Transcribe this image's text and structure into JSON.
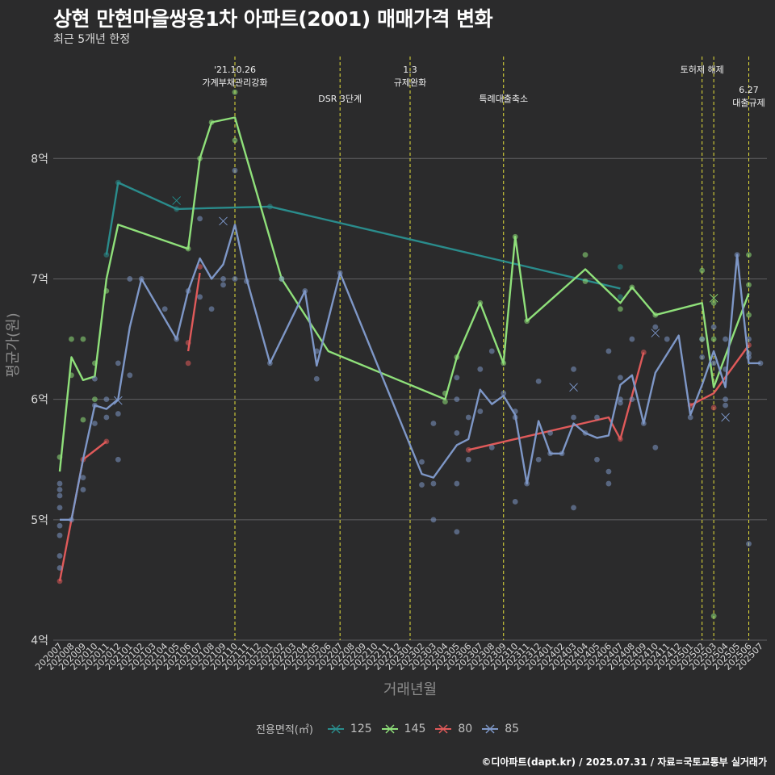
{
  "title": "상현 만현마을쌍용1차 아파트(2001) 매매가격 변화",
  "subtitle": "최근 5개년 한정",
  "caption": "©디아파트(dapt.kr) / 2025.07.31 / 자료=국토교통부 실거래가",
  "legend": {
    "title": "전용면적(㎡)",
    "items": [
      {
        "label": "125",
        "color": "#2a8c8c"
      },
      {
        "label": "145",
        "color": "#8fe07a"
      },
      {
        "label": "80",
        "color": "#e05a5a"
      },
      {
        "label": "85",
        "color": "#7e97c7"
      }
    ]
  },
  "chart_data": {
    "type": "line",
    "xlabel": "거래년월",
    "ylabel": "평균가(원)",
    "ylim": [
      4,
      8.9
    ],
    "yticks": [
      {
        "value": 4,
        "label": "4억"
      },
      {
        "value": 5,
        "label": "5억"
      },
      {
        "value": 6,
        "label": "6억"
      },
      {
        "value": 7,
        "label": "7억"
      },
      {
        "value": 8,
        "label": "8억"
      }
    ],
    "categories": [
      "202007",
      "202008",
      "202009",
      "202010",
      "202011",
      "202012",
      "202101",
      "202102",
      "202103",
      "202104",
      "202105",
      "202106",
      "202107",
      "202108",
      "202109",
      "202110",
      "202111",
      "202112",
      "202201",
      "202202",
      "202203",
      "202204",
      "202205",
      "202206",
      "202207",
      "202208",
      "202209",
      "202210",
      "202211",
      "202212",
      "202301",
      "202302",
      "202303",
      "202304",
      "202305",
      "202306",
      "202307",
      "202308",
      "202309",
      "202310",
      "202311",
      "202312",
      "202401",
      "202402",
      "202403",
      "202404",
      "202405",
      "202406",
      "202407",
      "202408",
      "202409",
      "202410",
      "202411",
      "202412",
      "202501",
      "202502",
      "202503",
      "202504",
      "202505",
      "202506",
      "202507"
    ],
    "events": [
      {
        "x": "202110",
        "label": [
          "'21.10.26",
          "가계부채관리강화"
        ],
        "level": 0
      },
      {
        "x": "202207",
        "label": [
          "DSR 3단계"
        ],
        "level": 1
      },
      {
        "x": "202301",
        "label": [
          "1.3",
          "규제완화"
        ],
        "level": 0
      },
      {
        "x": "202309",
        "label": [
          "특례대출축소"
        ],
        "level": 1
      },
      {
        "x": "202502",
        "label": [
          "토허제 해제"
        ],
        "level": 0
      },
      {
        "x": "202503",
        "label": [],
        "level": 0
      },
      {
        "x": "202506",
        "label": [
          "6.27",
          "대출규제"
        ],
        "level": 2
      }
    ],
    "series": [
      {
        "name": "125",
        "color": "#2a8c8c",
        "line": [
          [
            "202011",
            7.2
          ],
          [
            "202012",
            7.8
          ],
          [
            "202105",
            7.58
          ],
          [
            "202201",
            7.6
          ],
          [
            "202407",
            6.92
          ]
        ],
        "points": [
          [
            "202011",
            7.2
          ],
          [
            "202012",
            7.8
          ],
          [
            "202105",
            7.58
          ],
          [
            "202201",
            7.6
          ],
          [
            "202407",
            7.1
          ],
          [
            "202407",
            6.85
          ]
        ],
        "crosses": [
          [
            "202105",
            7.65
          ]
        ]
      },
      {
        "name": "145",
        "color": "#8fe07a",
        "line": [
          [
            "202007",
            5.4
          ],
          [
            "202008",
            6.35
          ],
          [
            "202009",
            6.16
          ],
          [
            "202010",
            6.19
          ],
          [
            "202011",
            7.0
          ],
          [
            "202012",
            7.45
          ],
          [
            "202106",
            7.25
          ],
          [
            "202107",
            8.0
          ],
          [
            "202108",
            8.3
          ],
          [
            "202110",
            8.34
          ],
          [
            "202202",
            7.0
          ],
          [
            "202206",
            6.4
          ],
          [
            "202304",
            6.0
          ],
          [
            "202305",
            6.35
          ],
          [
            "202307",
            6.8
          ],
          [
            "202309",
            6.3
          ],
          [
            "202310",
            7.35
          ],
          [
            "202311",
            6.65
          ],
          [
            "202404",
            7.08
          ],
          [
            "202407",
            6.8
          ],
          [
            "202408",
            6.93
          ],
          [
            "202410",
            6.7
          ],
          [
            "202502",
            6.8
          ],
          [
            "202503",
            6.1
          ],
          [
            "202506",
            6.88
          ]
        ],
        "points": [
          [
            "202007",
            5.52
          ],
          [
            "202008",
            6.2
          ],
          [
            "202008",
            6.5
          ],
          [
            "202009",
            5.83
          ],
          [
            "202009",
            6.5
          ],
          [
            "202010",
            6.3
          ],
          [
            "202010",
            6.0
          ],
          [
            "202011",
            6.9
          ],
          [
            "202106",
            7.25
          ],
          [
            "202107",
            8.0
          ],
          [
            "202108",
            8.3
          ],
          [
            "202110",
            8.55
          ],
          [
            "202110",
            8.15
          ],
          [
            "202202",
            7.0
          ],
          [
            "202304",
            6.05
          ],
          [
            "202304",
            5.98
          ],
          [
            "202305",
            6.35
          ],
          [
            "202307",
            6.8
          ],
          [
            "202309",
            6.3
          ],
          [
            "202310",
            7.35
          ],
          [
            "202311",
            6.65
          ],
          [
            "202404",
            7.2
          ],
          [
            "202404",
            6.98
          ],
          [
            "202407",
            6.75
          ],
          [
            "202408",
            6.93
          ],
          [
            "202410",
            6.7
          ],
          [
            "202502",
            7.07
          ],
          [
            "202502",
            6.5
          ],
          [
            "202503",
            6.8
          ],
          [
            "202503",
            6.5
          ],
          [
            "202503",
            4.2
          ],
          [
            "202506",
            7.2
          ],
          [
            "202506",
            6.95
          ],
          [
            "202506",
            6.7
          ]
        ],
        "crosses": [
          [
            "202503",
            6.84
          ]
        ]
      },
      {
        "name": "80",
        "color": "#e05a5a",
        "line": [
          [
            "202007",
            4.49
          ],
          [
            "202008",
            5.0
          ],
          [
            "202009",
            5.5
          ],
          [
            "202011",
            5.65
          ]
        ],
        "line2": [
          [
            "202106",
            6.4
          ],
          [
            "202107",
            7.05
          ]
        ],
        "line3": [
          [
            "202306",
            5.58
          ],
          [
            "202406",
            5.85
          ],
          [
            "202407",
            5.67
          ],
          [
            "202409",
            6.39
          ]
        ],
        "line4": [
          [
            "202501",
            5.95
          ],
          [
            "202503",
            6.05
          ],
          [
            "202506",
            6.45
          ]
        ],
        "points": [
          [
            "202007",
            4.49
          ],
          [
            "202009",
            5.5
          ],
          [
            "202011",
            5.65
          ],
          [
            "202106",
            6.47
          ],
          [
            "202106",
            6.3
          ],
          [
            "202107",
            7.1
          ],
          [
            "202306",
            5.58
          ],
          [
            "202407",
            5.67
          ],
          [
            "202409",
            6.39
          ],
          [
            "202501",
            5.95
          ],
          [
            "202503",
            5.93
          ],
          [
            "202506",
            6.45
          ]
        ],
        "crosses": []
      },
      {
        "name": "85",
        "color": "#7e97c7",
        "line": [
          [
            "202007",
            5.0
          ],
          [
            "202008",
            5.0
          ],
          [
            "202009",
            5.5
          ],
          [
            "202010",
            5.95
          ],
          [
            "202011",
            5.92
          ],
          [
            "202012",
            6.0
          ],
          [
            "202101",
            6.6
          ],
          [
            "202102",
            7.0
          ],
          [
            "202105",
            6.5
          ],
          [
            "202106",
            6.9
          ],
          [
            "202107",
            7.17
          ],
          [
            "202108",
            7.0
          ],
          [
            "202109",
            7.12
          ],
          [
            "202110",
            7.45
          ],
          [
            "202111",
            7.0
          ],
          [
            "202201",
            6.3
          ],
          [
            "202204",
            6.9
          ],
          [
            "202205",
            6.28
          ],
          [
            "202207",
            7.05
          ],
          [
            "202302",
            5.38
          ],
          [
            "202303",
            5.35
          ],
          [
            "202305",
            5.62
          ],
          [
            "202306",
            5.67
          ],
          [
            "202307",
            6.08
          ],
          [
            "202308",
            5.96
          ],
          [
            "202309",
            6.03
          ],
          [
            "202310",
            5.87
          ],
          [
            "202311",
            5.3
          ],
          [
            "202312",
            5.82
          ],
          [
            "202401",
            5.55
          ],
          [
            "202402",
            5.55
          ],
          [
            "202403",
            5.8
          ],
          [
            "202404",
            5.72
          ],
          [
            "202405",
            5.68
          ],
          [
            "202406",
            5.7
          ],
          [
            "202407",
            6.12
          ],
          [
            "202408",
            6.2
          ],
          [
            "202409",
            5.8
          ],
          [
            "202410",
            6.22
          ],
          [
            "202412",
            6.53
          ],
          [
            "202501",
            5.87
          ],
          [
            "202502",
            6.12
          ],
          [
            "202503",
            6.4
          ],
          [
            "202504",
            6.1
          ],
          [
            "202505",
            7.2
          ],
          [
            "202506",
            6.3
          ],
          [
            "202507",
            6.3
          ]
        ],
        "points": [
          [
            "202007",
            5.3
          ],
          [
            "202007",
            5.25
          ],
          [
            "202007",
            5.2
          ],
          [
            "202007",
            5.1
          ],
          [
            "202007",
            4.95
          ],
          [
            "202007",
            4.87
          ],
          [
            "202007",
            4.7
          ],
          [
            "202007",
            4.6
          ],
          [
            "202008",
            5.0
          ],
          [
            "202009",
            5.35
          ],
          [
            "202009",
            5.25
          ],
          [
            "202010",
            5.95
          ],
          [
            "202010",
            5.8
          ],
          [
            "202010",
            6.17
          ],
          [
            "202011",
            5.85
          ],
          [
            "202011",
            6.0
          ],
          [
            "202012",
            6.3
          ],
          [
            "202012",
            5.88
          ],
          [
            "202012",
            5.5
          ],
          [
            "202101",
            7.0
          ],
          [
            "202101",
            6.2
          ],
          [
            "202102",
            7.0
          ],
          [
            "202104",
            6.75
          ],
          [
            "202105",
            6.5
          ],
          [
            "202106",
            6.9
          ],
          [
            "202107",
            6.85
          ],
          [
            "202107",
            7.5
          ],
          [
            "202108",
            6.75
          ],
          [
            "202109",
            7.0
          ],
          [
            "202109",
            6.95
          ],
          [
            "202110",
            7.9
          ],
          [
            "202110",
            7.0
          ],
          [
            "202111",
            6.98
          ],
          [
            "202201",
            6.3
          ],
          [
            "202202",
            7.0
          ],
          [
            "202204",
            6.9
          ],
          [
            "202205",
            6.17
          ],
          [
            "202205",
            6.4
          ],
          [
            "202207",
            7.05
          ],
          [
            "202302",
            5.48
          ],
          [
            "202302",
            5.29
          ],
          [
            "202303",
            5.3
          ],
          [
            "202303",
            5.0
          ],
          [
            "202303",
            5.8
          ],
          [
            "202305",
            6.18
          ],
          [
            "202305",
            6.0
          ],
          [
            "202305",
            5.72
          ],
          [
            "202305",
            5.3
          ],
          [
            "202305",
            4.9
          ],
          [
            "202306",
            5.85
          ],
          [
            "202306",
            5.5
          ],
          [
            "202307",
            6.25
          ],
          [
            "202307",
            5.9
          ],
          [
            "202308",
            6.4
          ],
          [
            "202308",
            5.6
          ],
          [
            "202309",
            6.05
          ],
          [
            "202310",
            5.85
          ],
          [
            "202310",
            5.9
          ],
          [
            "202310",
            5.15
          ],
          [
            "202311",
            5.3
          ],
          [
            "202312",
            6.15
          ],
          [
            "202312",
            5.5
          ],
          [
            "202401",
            5.55
          ],
          [
            "202401",
            5.72
          ],
          [
            "202402",
            5.55
          ],
          [
            "202403",
            5.85
          ],
          [
            "202403",
            5.1
          ],
          [
            "202403",
            6.25
          ],
          [
            "202404",
            5.72
          ],
          [
            "202405",
            5.85
          ],
          [
            "202405",
            5.5
          ],
          [
            "202406",
            6.4
          ],
          [
            "202406",
            5.4
          ],
          [
            "202406",
            5.3
          ],
          [
            "202407",
            6.18
          ],
          [
            "202407",
            6.0
          ],
          [
            "202407",
            5.97
          ],
          [
            "202408",
            6.0
          ],
          [
            "202408",
            6.5
          ],
          [
            "202409",
            5.8
          ],
          [
            "202410",
            6.6
          ],
          [
            "202410",
            5.6
          ],
          [
            "202411",
            6.5
          ],
          [
            "202501",
            5.85
          ],
          [
            "202502",
            6.5
          ],
          [
            "202502",
            6.35
          ],
          [
            "202503",
            6.6
          ],
          [
            "202503",
            6.3
          ],
          [
            "202504",
            6.5
          ],
          [
            "202504",
            6.0
          ],
          [
            "202504",
            5.95
          ],
          [
            "202504",
            6.25
          ],
          [
            "202505",
            7.2
          ],
          [
            "202506",
            6.38
          ],
          [
            "202506",
            6.35
          ],
          [
            "202506",
            6.5
          ],
          [
            "202506",
            4.8
          ],
          [
            "202507",
            6.3
          ]
        ],
        "crosses": [
          [
            "202012",
            5.99
          ],
          [
            "202109",
            7.48
          ],
          [
            "202403",
            6.1
          ],
          [
            "202410",
            6.55
          ],
          [
            "202504",
            5.85
          ]
        ]
      }
    ]
  }
}
